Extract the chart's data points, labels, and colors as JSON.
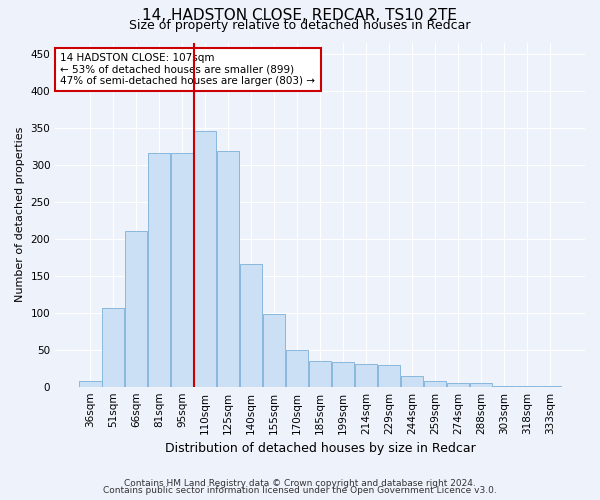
{
  "title1": "14, HADSTON CLOSE, REDCAR, TS10 2TE",
  "title2": "Size of property relative to detached houses in Redcar",
  "xlabel": "Distribution of detached houses by size in Redcar",
  "ylabel": "Number of detached properties",
  "categories": [
    "36sqm",
    "51sqm",
    "66sqm",
    "81sqm",
    "95sqm",
    "110sqm",
    "125sqm",
    "140sqm",
    "155sqm",
    "170sqm",
    "185sqm",
    "199sqm",
    "214sqm",
    "229sqm",
    "244sqm",
    "259sqm",
    "274sqm",
    "288sqm",
    "303sqm",
    "318sqm",
    "333sqm"
  ],
  "values": [
    7,
    106,
    210,
    316,
    316,
    345,
    318,
    166,
    98,
    50,
    35,
    34,
    30,
    29,
    15,
    8,
    5,
    5,
    1,
    1,
    1
  ],
  "bar_color": "#cce0f5",
  "bar_edge_color": "#7ab0d8",
  "vline_color": "#cc0000",
  "annotation_text": "14 HADSTON CLOSE: 107sqm\n← 53% of detached houses are smaller (899)\n47% of semi-detached houses are larger (803) →",
  "annotation_box_color": "#ffffff",
  "annotation_box_edge": "#cc0000",
  "footer1": "Contains HM Land Registry data © Crown copyright and database right 2024.",
  "footer2": "Contains public sector information licensed under the Open Government Licence v3.0.",
  "ylim": [
    0,
    465
  ],
  "yticks": [
    0,
    50,
    100,
    150,
    200,
    250,
    300,
    350,
    400,
    450
  ],
  "background_color": "#eef2fb",
  "title_fontsize": 11,
  "subtitle_fontsize": 9,
  "xlabel_fontsize": 9,
  "ylabel_fontsize": 8,
  "tick_fontsize": 7.5,
  "footer_fontsize": 6.5,
  "vline_bar_index": 5
}
